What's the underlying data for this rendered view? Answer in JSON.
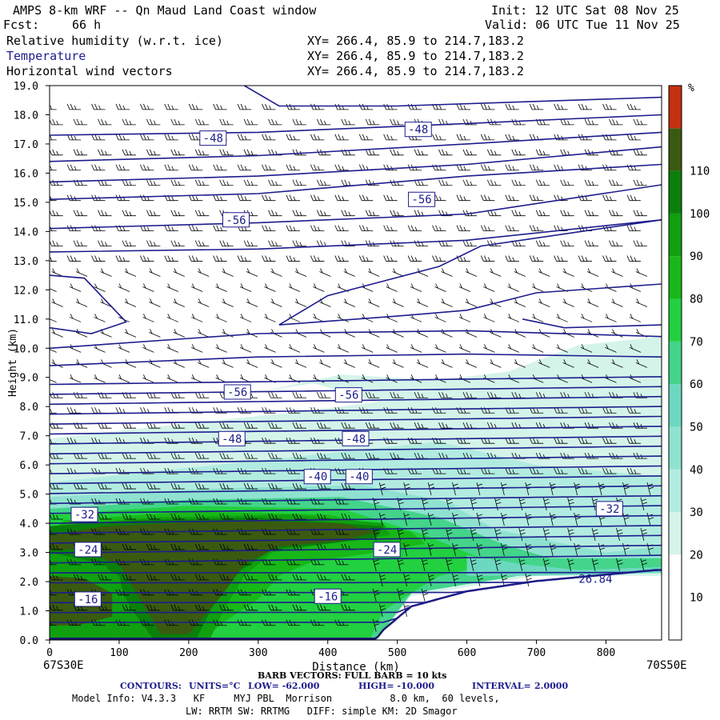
{
  "header": {
    "title": "AMPS 8-km WRF -- Qn Maud Land Coast window",
    "init": "Init: 12 UTC Sat 08 Nov 25",
    "fcst_label": "Fcst:",
    "fcst_value": "66 h",
    "valid": "Valid: 06 UTC Tue 11 Nov 25",
    "fields": [
      {
        "name": "Relative humidity (w.r.t. ice)",
        "xy": "XY= 266.4, 85.9 to 214.7,183.2"
      },
      {
        "name": "Temperature",
        "xy": "XY= 266.4, 85.9 to 214.7,183.2"
      },
      {
        "name": "Horizontal wind vectors",
        "xy": "XY= 266.4, 85.9 to 214.7,183.2"
      }
    ]
  },
  "colors": {
    "contour": "#1c1c8c",
    "terrain": "#1a1a6e",
    "scale": [
      "#ffffff",
      "#ffffff",
      "#d4f4ea",
      "#b2ece0",
      "#8fe2d0",
      "#6dd8c0",
      "#44d48a",
      "#22d040",
      "#18b818",
      "#10a010",
      "#0a800a",
      "#3a5a10",
      "#c43010"
    ]
  },
  "chart_data": {
    "type": "heatmap",
    "title": "Relative humidity (w.r.t. ice) / Temperature / Horizontal wind vectors",
    "xlabel": "Distance (km)",
    "ylabel": "Height (km)",
    "xlim": [
      0,
      880
    ],
    "ylim": [
      0,
      19
    ],
    "x_ticks": [
      0,
      100,
      200,
      300,
      400,
      500,
      600,
      700,
      800
    ],
    "y_ticks": [
      "0.0",
      "1.0",
      "2.0",
      "3.0",
      "4.0",
      "5.0",
      "6.0",
      "7.0",
      "8.0",
      "9.0",
      "10.0",
      "11.0",
      "12.0",
      "13.0",
      "14.0",
      "15.0",
      "16.0",
      "17.0",
      "18.0",
      "19.0"
    ],
    "x_start_label": "67S30E",
    "x_end_label": "70S50E",
    "colorbar": {
      "unit": "%",
      "levels": [
        10,
        20,
        30,
        40,
        50,
        60,
        70,
        80,
        90,
        100,
        110
      ]
    },
    "temperature_labels": [
      {
        "value": "-48",
        "x": 235,
        "y": 17.2
      },
      {
        "value": "-48",
        "x": 530,
        "y": 17.5
      },
      {
        "value": "-56",
        "x": 535,
        "y": 15.1
      },
      {
        "value": "-56",
        "x": 268,
        "y": 14.4
      },
      {
        "value": "-56",
        "x": 270,
        "y": 8.5
      },
      {
        "value": "-56",
        "x": 430,
        "y": 8.4
      },
      {
        "value": "-48",
        "x": 262,
        "y": 6.9
      },
      {
        "value": "-48",
        "x": 440,
        "y": 6.9
      },
      {
        "value": "-40",
        "x": 385,
        "y": 5.6
      },
      {
        "value": "-40",
        "x": 445,
        "y": 5.6
      },
      {
        "value": "-32",
        "x": 50,
        "y": 4.3
      },
      {
        "value": "-32",
        "x": 805,
        "y": 4.5
      },
      {
        "value": "-24",
        "x": 55,
        "y": 3.1
      },
      {
        "value": "-24",
        "x": 485,
        "y": 3.1
      },
      {
        "value": "-16",
        "x": 55,
        "y": 1.4
      },
      {
        "value": "-16",
        "x": 400,
        "y": 1.5
      }
    ],
    "terrain_label": {
      "value": "26.84",
      "x": 785,
      "y": 2.1
    },
    "barb_note": "BARB VECTORS: FULL BARB = 10 kts",
    "contours": {
      "label": "CONTOURS:",
      "units": "UNITS=°C",
      "low": "LOW= -62.000",
      "high": "HIGH= -10.000",
      "interval": "INTERVAL=",
      "interval_value": "2.0000"
    }
  },
  "footer": {
    "model_info": "Model Info: V4.3.3   KF     MYJ PBL  Morrison          8.0 km,  60 levels,",
    "physics": "LW: RRTM SW: RRTMG   DIFF: simple KM: 2D Smagor"
  }
}
